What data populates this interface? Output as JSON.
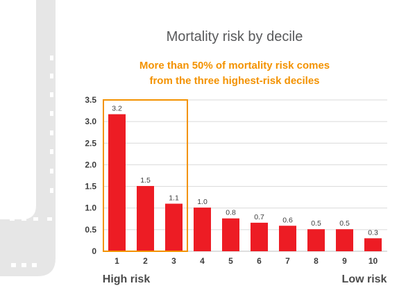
{
  "chart_data": {
    "type": "bar",
    "title": "Mortality risk by decile",
    "subtitle_lines": [
      "More than 50% of mortality risk comes",
      "from the three highest-risk deciles"
    ],
    "categories": [
      "1",
      "2",
      "3",
      "4",
      "5",
      "6",
      "7",
      "8",
      "9",
      "10"
    ],
    "values": [
      3.17,
      1.51,
      1.1,
      1.01,
      0.76,
      0.66,
      0.59,
      0.51,
      0.51,
      0.3
    ],
    "data_labels": [
      "3.2",
      "1.5",
      "1.1",
      "1.0",
      "0.8",
      "0.7",
      "0.6",
      "0.5",
      "0.5",
      "0.3"
    ],
    "ylim": [
      0,
      3.5
    ],
    "yticks": [
      "0",
      "0.5",
      "1.0",
      "1.5",
      "2.0",
      "2.5",
      "3.0",
      "3.5"
    ],
    "xlabel": "",
    "ylabel": "",
    "grid": true,
    "highlight_categories": [
      "1",
      "2",
      "3"
    ],
    "left_note": "High risk",
    "right_note": "Low risk",
    "colors": {
      "bar": "#ed1c24",
      "highlight_box": "#f39200",
      "subtitle": "#f39200",
      "grid": "#d9d9d9",
      "film_strip": "#e6e6e6"
    }
  }
}
